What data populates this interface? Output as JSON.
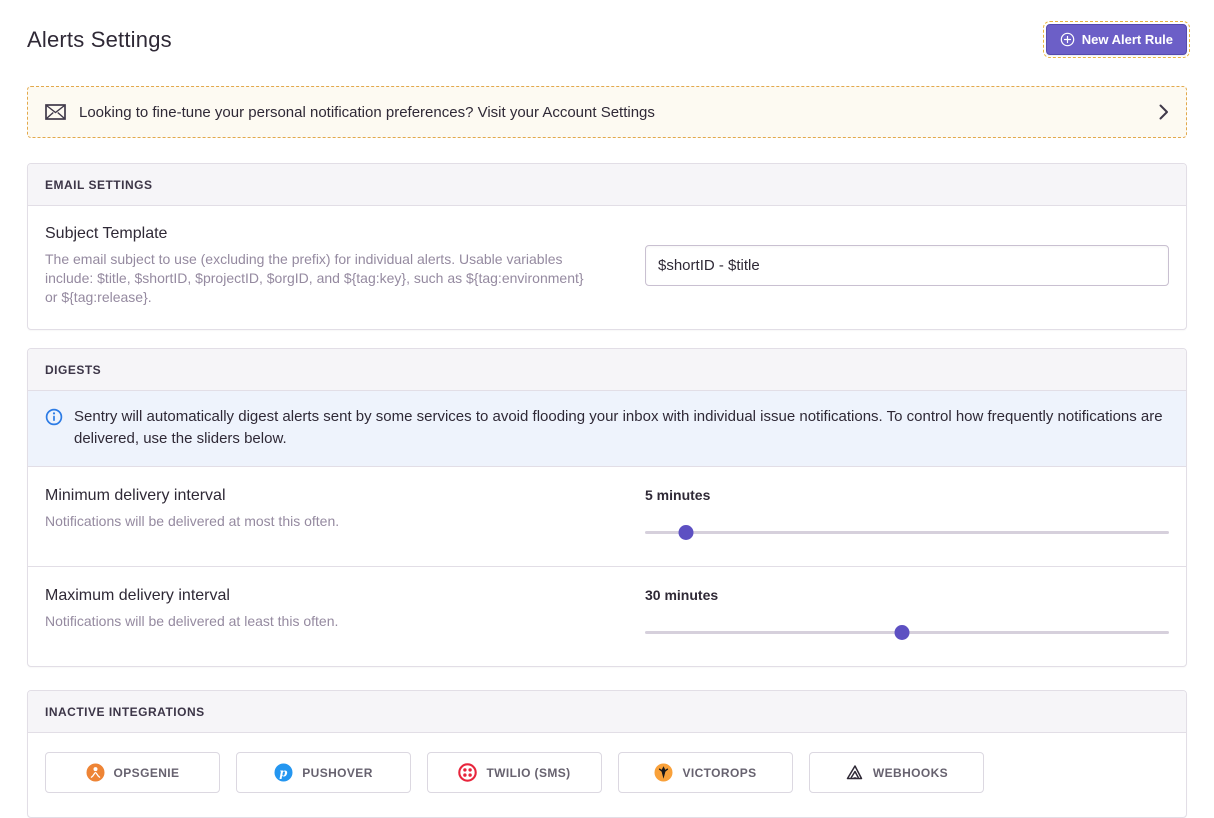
{
  "page": {
    "title": "Alerts Settings"
  },
  "header": {
    "new_alert_rule_label": "New Alert Rule"
  },
  "banner": {
    "text": "Looking to fine-tune your personal notification preferences? Visit your Account Settings"
  },
  "email_settings": {
    "header": "EMAIL SETTINGS",
    "subject_template": {
      "label": "Subject Template",
      "help": "The email subject to use (excluding the prefix) for individual alerts. Usable variables include: $title, $shortID, $projectID, $orgID, and ${tag:key}, such as ${tag:environment} or ${tag:release}.",
      "value": "$shortID - $title"
    }
  },
  "digests": {
    "header": "DIGESTS",
    "info": "Sentry will automatically digest alerts sent by some services to avoid flooding your inbox with individual issue notifications. To control how frequently notifications are delivered, use the sliders below.",
    "minimum": {
      "label": "Minimum delivery interval",
      "help": "Notifications will be delivered at most this often.",
      "value": "5 minutes",
      "thumb_percent": 7.8
    },
    "maximum": {
      "label": "Maximum delivery interval",
      "help": "Notifications will be delivered at least this often.",
      "value": "30 minutes",
      "thumb_percent": 49.1
    }
  },
  "inactive_integrations": {
    "header": "INACTIVE INTEGRATIONS",
    "items": [
      {
        "label": "OPSGENIE",
        "icon": "opsgenie-icon",
        "color": "#ee8435"
      },
      {
        "label": "PUSHOVER",
        "icon": "pushover-icon",
        "color": "#2496f0"
      },
      {
        "label": "TWILIO (SMS)",
        "icon": "twilio-icon",
        "color": "#e8253c"
      },
      {
        "label": "VICTOROPS",
        "icon": "victorops-icon",
        "color": "#f9a13a"
      },
      {
        "label": "WEBHOOKS",
        "icon": "webhooks-icon",
        "color": "#2f2936"
      }
    ]
  },
  "colors": {
    "primary_purple": "#6c5fc7",
    "slider_thumb": "#5d50c2",
    "banner_border": "#e3a94c",
    "banner_bg": "#fdfaf2",
    "info_bg": "#eef3fc",
    "info_icon_blue": "#2c7be5",
    "panel_border": "#e2dee6",
    "text_dark": "#2f2936",
    "text_muted": "#958aa0"
  }
}
